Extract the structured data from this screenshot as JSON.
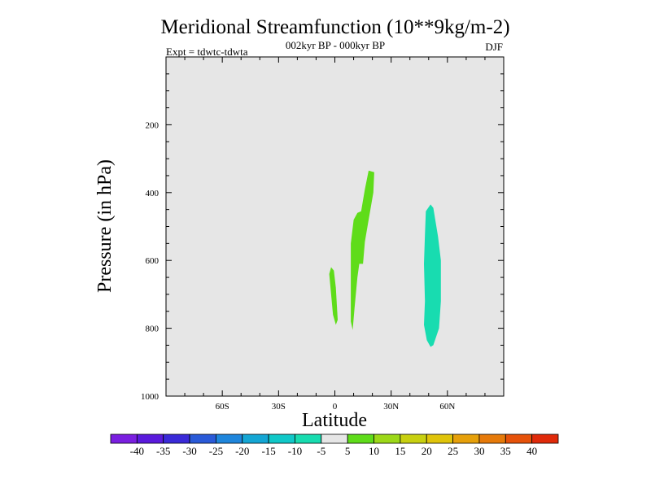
{
  "chart_data": {
    "type": "contour",
    "title": "Meridional Streamfunction (10**9kg/m-2)",
    "subtitle": "002kyr BP - 000kyr BP",
    "season": "DJF",
    "experiment": "Expt = tdwtc-tdwta",
    "xlabel": "Latitude",
    "ylabel": "Pressure (in hPa)",
    "xlim": [
      -90,
      90
    ],
    "ylim": [
      1000,
      0
    ],
    "x_ticks": [
      {
        "value": -60,
        "label": "60S"
      },
      {
        "value": -30,
        "label": "30S"
      },
      {
        "value": 0,
        "label": "0"
      },
      {
        "value": 30,
        "label": "30N"
      },
      {
        "value": 60,
        "label": "60N"
      }
    ],
    "y_ticks": [
      {
        "value": 200,
        "label": "200"
      },
      {
        "value": 400,
        "label": "400"
      },
      {
        "value": 600,
        "label": "600"
      },
      {
        "value": 800,
        "label": "800"
      },
      {
        "value": 1000,
        "label": "1000"
      }
    ],
    "colorbar": {
      "levels": [
        -40,
        -35,
        -30,
        -25,
        -20,
        -15,
        -10,
        -5,
        5,
        10,
        15,
        20,
        25,
        30,
        35,
        40
      ],
      "labels": [
        "-40",
        "-35",
        "-30",
        "-25",
        "-20",
        "-15",
        "-10",
        "-5",
        "5",
        "10",
        "15",
        "20",
        "25",
        "30",
        "35",
        "40"
      ],
      "colors": [
        "#7a1fe0",
        "#5a1adc",
        "#3a2ad8",
        "#2a5ad8",
        "#1f86dc",
        "#14a6d4",
        "#10c8c8",
        "#18dcb0",
        "#e6e6e6",
        "#5fdc1a",
        "#9cd818",
        "#c8d010",
        "#e0c40a",
        "#e6a00a",
        "#e67a0a",
        "#e6520a",
        "#e02a0a"
      ]
    },
    "background_color": "#e6e6e6",
    "regions": [
      {
        "name": "tropical-positive-5-to-10",
        "level_range": [
          5,
          10
        ],
        "color": "#5fdc1a",
        "outline": [
          [
            -2,
            620
          ],
          [
            -0.5,
            630
          ],
          [
            0.5,
            680
          ],
          [
            1.5,
            775
          ],
          [
            0.5,
            790
          ],
          [
            -1,
            760
          ],
          [
            -2,
            700
          ],
          [
            -3,
            640
          ]
        ]
      },
      {
        "name": "tropical-positive-5-to-10",
        "level_range": [
          5,
          10
        ],
        "color": "#5fdc1a",
        "outline": [
          [
            18,
            335
          ],
          [
            21,
            340
          ],
          [
            20.5,
            400
          ],
          [
            18,
            480
          ],
          [
            16,
            545
          ],
          [
            15,
            610
          ],
          [
            13,
            610
          ],
          [
            12,
            650
          ],
          [
            10.5,
            740
          ],
          [
            9.5,
            805
          ],
          [
            8.5,
            780
          ],
          [
            8.5,
            660
          ],
          [
            8.5,
            550
          ],
          [
            10,
            480
          ],
          [
            12,
            460
          ],
          [
            14,
            455
          ],
          [
            16,
            390
          ]
        ]
      },
      {
        "name": "midlatitude-negative-10-to-5",
        "level_range": [
          -10,
          -5
        ],
        "color": "#18dcb0",
        "outline": [
          [
            51,
            435
          ],
          [
            52.5,
            445
          ],
          [
            55,
            530
          ],
          [
            56.5,
            600
          ],
          [
            56.5,
            720
          ],
          [
            55.5,
            800
          ],
          [
            52.5,
            850
          ],
          [
            51,
            855
          ],
          [
            49,
            835
          ],
          [
            47.5,
            790
          ],
          [
            48,
            720
          ],
          [
            47.5,
            610
          ],
          [
            48,
            525
          ],
          [
            48.5,
            455
          ]
        ]
      }
    ]
  }
}
